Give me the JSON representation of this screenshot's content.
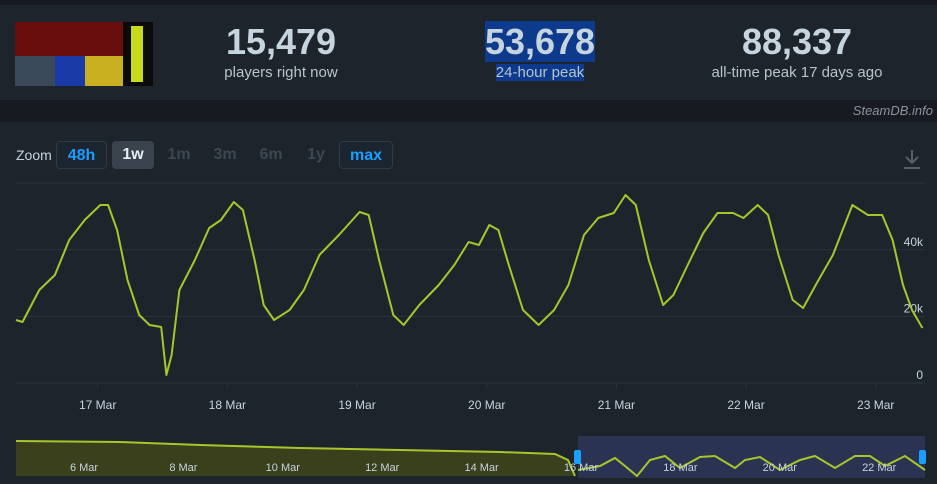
{
  "header": {
    "stats": [
      {
        "value": "15,479",
        "label": "players right now"
      },
      {
        "value": "53,678",
        "label": "24-hour peak"
      },
      {
        "value": "88,337",
        "label": "all-time peak 17 days ago"
      }
    ],
    "watermark": "SteamDB.info"
  },
  "zoom": {
    "label": "Zoom",
    "buttons": [
      "48h",
      "1w",
      "1m",
      "3m",
      "6m",
      "1y",
      "max"
    ]
  },
  "chart_data": {
    "type": "line",
    "color": "#a8c62c",
    "grid": true,
    "xlim": [
      16.37,
      23.38
    ],
    "xticks": [
      {
        "value": 17,
        "label": "17 Mar"
      },
      {
        "value": 18,
        "label": "18 Mar"
      },
      {
        "value": 19,
        "label": "19 Mar"
      },
      {
        "value": 20,
        "label": "20 Mar"
      },
      {
        "value": 21,
        "label": "21 Mar"
      },
      {
        "value": 22,
        "label": "22 Mar"
      },
      {
        "value": 23,
        "label": "23 Mar"
      }
    ],
    "ylim": [
      0,
      60000
    ],
    "yticks": [
      0,
      {
        "value": 20000,
        "label": "20k"
      },
      {
        "value": 40000,
        "label": "40k"
      }
    ],
    "x": [
      16.37,
      16.42,
      16.55,
      16.67,
      16.78,
      16.9,
      17.02,
      17.08,
      17.15,
      17.23,
      17.32,
      17.4,
      17.49,
      17.53,
      17.57,
      17.63,
      17.75,
      17.86,
      17.95,
      18.05,
      18.12,
      18.21,
      18.28,
      18.36,
      18.48,
      18.59,
      18.71,
      18.86,
      19.02,
      19.09,
      19.17,
      19.28,
      19.36,
      19.48,
      19.63,
      19.75,
      19.86,
      19.94,
      20.02,
      20.09,
      20.17,
      20.28,
      20.4,
      20.52,
      20.63,
      20.75,
      20.86,
      20.98,
      21.07,
      21.15,
      21.25,
      21.36,
      21.44,
      21.55,
      21.67,
      21.78,
      21.9,
      21.98,
      22.09,
      22.17,
      22.25,
      22.36,
      22.44,
      22.55,
      22.67,
      22.82,
      22.94,
      23.05,
      23.13,
      23.21,
      23.28,
      23.36
    ],
    "values": [
      18900,
      18300,
      27900,
      32400,
      42900,
      48900,
      53400,
      53400,
      45900,
      30900,
      20400,
      17400,
      16800,
      2400,
      8400,
      27900,
      36900,
      46500,
      48900,
      54300,
      51900,
      36900,
      23400,
      18900,
      21900,
      27900,
      38400,
      44400,
      51300,
      50400,
      36900,
      20400,
      17400,
      23400,
      29400,
      35400,
      42300,
      41400,
      47400,
      45900,
      35400,
      21900,
      17400,
      21900,
      29400,
      44400,
      49500,
      51000,
      56400,
      53400,
      36900,
      23400,
      26400,
      35400,
      45000,
      51000,
      51000,
      49500,
      53400,
      50400,
      38400,
      24900,
      22500,
      30300,
      38400,
      53400,
      50400,
      50400,
      42900,
      29400,
      21900,
      16500
    ]
  },
  "navigator": {
    "labels": [
      "6 Mar",
      "8 Mar",
      "10 Mar",
      "12 Mar",
      "14 Mar",
      "16 Mar",
      "18 Mar",
      "20 Mar",
      "22 Mar"
    ]
  }
}
